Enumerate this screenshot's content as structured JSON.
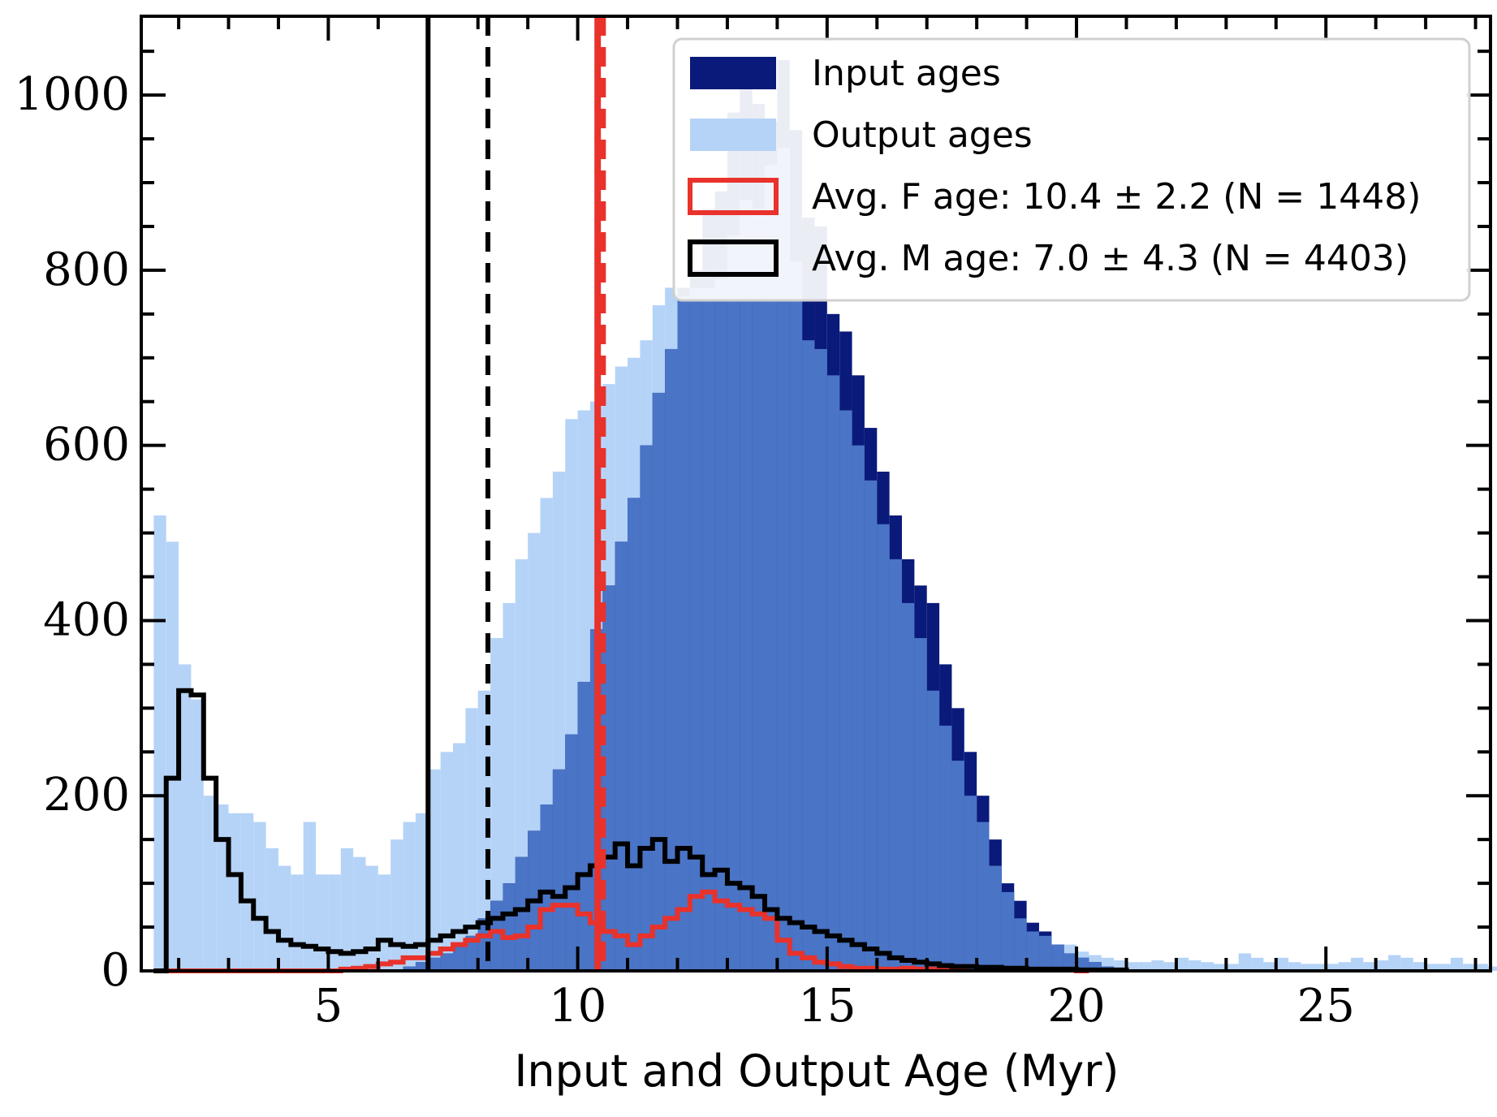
{
  "chart_data": {
    "type": "bar",
    "xlabel": "Input and Output Age (Myr)",
    "ylabel": "",
    "xlim": [
      1.25,
      28.3
    ],
    "ylim": [
      0,
      1090
    ],
    "x_ticks": [
      5,
      10,
      15,
      20,
      25
    ],
    "y_ticks": [
      0,
      200,
      400,
      600,
      800,
      1000
    ],
    "bin_width": 0.25,
    "bin_start": 1.5,
    "legend_position": "top-right",
    "series": [
      {
        "name": "Input ages",
        "color": "#0a1a7a",
        "fill": true,
        "values": [
          0,
          0,
          0,
          0,
          0,
          0,
          0,
          0,
          0,
          0,
          0,
          0,
          0,
          0,
          0,
          0,
          0,
          0,
          0,
          0,
          5,
          10,
          15,
          20,
          30,
          40,
          60,
          80,
          100,
          130,
          160,
          190,
          230,
          270,
          330,
          390,
          440,
          490,
          540,
          600,
          660,
          710,
          780,
          800,
          870,
          890,
          980,
          1040,
          990,
          970,
          1040,
          960,
          860,
          850,
          750,
          730,
          680,
          620,
          570,
          520,
          470,
          440,
          420,
          350,
          300,
          250,
          200,
          150,
          100,
          80,
          55,
          45,
          30,
          20,
          15,
          10,
          5,
          0,
          0,
          0,
          0,
          0,
          0,
          0,
          0,
          0,
          0,
          0,
          0,
          0,
          0,
          0,
          0,
          0,
          0,
          0,
          0,
          0,
          0,
          0,
          0,
          0,
          0,
          0,
          0,
          0,
          0
        ]
      },
      {
        "name": "Output ages",
        "color": "#b5d3f7",
        "fill": true,
        "values": [
          520,
          490,
          350,
          310,
          200,
          190,
          180,
          180,
          170,
          140,
          120,
          110,
          170,
          110,
          110,
          140,
          130,
          120,
          110,
          150,
          170,
          180,
          230,
          250,
          260,
          300,
          320,
          380,
          420,
          470,
          500,
          540,
          570,
          630,
          640,
          650,
          670,
          690,
          700,
          720,
          760,
          780,
          770,
          780,
          780,
          790,
          840,
          880,
          870,
          920,
          940,
          810,
          720,
          710,
          680,
          640,
          600,
          560,
          510,
          470,
          420,
          380,
          320,
          280,
          240,
          200,
          170,
          120,
          90,
          60,
          45,
          40,
          30,
          30,
          22,
          18,
          15,
          12,
          10,
          10,
          12,
          10,
          15,
          12,
          10,
          8,
          8,
          20,
          15,
          10,
          15,
          10,
          8,
          8,
          8,
          10,
          15,
          10,
          12,
          18,
          15,
          10,
          8,
          8,
          15,
          8,
          8,
          5,
          8,
          5,
          5,
          5,
          5,
          5,
          5,
          5,
          3,
          3,
          3,
          3,
          3,
          3,
          3,
          3,
          2,
          2,
          2,
          2,
          2,
          2
        ]
      },
      {
        "name": "Avg. F age: 10.4 ± 2.2 (N = 1448)",
        "color": "#e8322b",
        "fill": false,
        "values": [
          0,
          0,
          0,
          0,
          0,
          0,
          0,
          0,
          0,
          0,
          0,
          0,
          0,
          0,
          0,
          2,
          3,
          5,
          8,
          10,
          15,
          15,
          20,
          25,
          30,
          35,
          40,
          45,
          38,
          40,
          50,
          70,
          75,
          75,
          65,
          55,
          45,
          40,
          30,
          40,
          50,
          60,
          70,
          85,
          90,
          80,
          75,
          70,
          65,
          60,
          35,
          20,
          15,
          10,
          8,
          5,
          3,
          3,
          2,
          2,
          3,
          2,
          2,
          2,
          2,
          5,
          2,
          2,
          2,
          2,
          1,
          1,
          1,
          1,
          0
        ]
      },
      {
        "name": "Avg. M age: 7.0 ± 4.3 (N = 4403)",
        "color": "#000000",
        "fill": false,
        "values": [
          0,
          220,
          320,
          315,
          220,
          150,
          110,
          80,
          60,
          45,
          35,
          30,
          28,
          25,
          22,
          20,
          22,
          25,
          35,
          30,
          28,
          30,
          35,
          40,
          45,
          50,
          55,
          60,
          65,
          70,
          80,
          90,
          85,
          95,
          110,
          120,
          130,
          145,
          120,
          140,
          150,
          125,
          140,
          130,
          110,
          115,
          100,
          95,
          85,
          70,
          60,
          55,
          50,
          45,
          40,
          35,
          30,
          25,
          20,
          15,
          12,
          10,
          8,
          6,
          5,
          5,
          4,
          4,
          3,
          3,
          2,
          2,
          2,
          2,
          1,
          1,
          1,
          1
        ]
      }
    ],
    "reference_lines": [
      {
        "x": 7.0,
        "style": "solid",
        "color": "#000000"
      },
      {
        "x": 8.2,
        "style": "dashed",
        "color": "#000000"
      },
      {
        "x": 10.4,
        "style": "solid",
        "color": "#e8322b"
      },
      {
        "x": 10.5,
        "style": "dashed",
        "color": "#e8322b"
      }
    ]
  }
}
